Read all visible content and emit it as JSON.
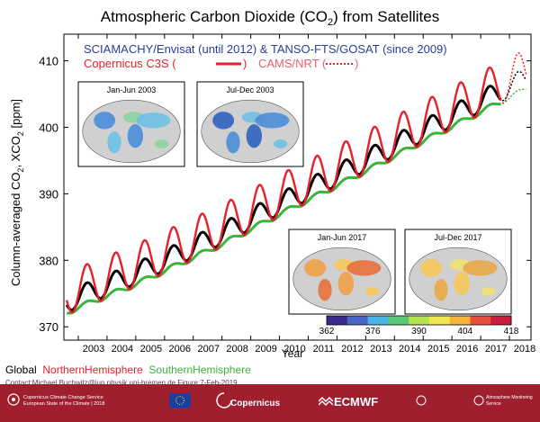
{
  "chart_data": {
    "type": "line",
    "title": "Atmospheric Carbon Dioxide (CO",
    "title_sub": "2",
    "title_end": ") from Satellites",
    "xlabel": "Year",
    "ylabel_parts": [
      "Column-averaged CO",
      "2",
      ", XCO",
      "2",
      " [ppm]"
    ],
    "ylim": [
      368,
      414
    ],
    "xlim": [
      2002.5,
      2018.75
    ],
    "yticks": [
      370,
      380,
      390,
      400,
      410
    ],
    "xticks": [
      "2003",
      "2004",
      "2005",
      "2006",
      "2007",
      "2008",
      "2009",
      "2010",
      "2011",
      "2012",
      "2013",
      "2014",
      "2015",
      "2016",
      "2017",
      "2018"
    ],
    "header_line1": "SCIAMACHY/Envisat (until 2012) & TANSO-FTS/GOSAT (since 2009)",
    "header_line2a": "Copernicus   C3S (",
    "header_line2b": ")",
    "header_line2c": "CAMS/NRT (",
    "header_line2d": ")",
    "series": [
      {
        "name": "Global",
        "color": "#000000",
        "offset": 0,
        "amplitude": 1.6
      },
      {
        "name": "NorthernHemisphere",
        "color": "#e8202a",
        "offset": 1.2,
        "amplitude": 3.2
      },
      {
        "name": "SouthernHemisphere",
        "color": "#3cb43c",
        "offset": -1.6,
        "amplitude": 0.4
      }
    ],
    "trend": {
      "x": [
        2003.0,
        2005.0,
        2008.0,
        2010.0,
        2013.0,
        2015.0,
        2017.5
      ],
      "y": [
        374.5,
        378.0,
        384.0,
        388.5,
        395.0,
        399.5,
        405.0
      ]
    },
    "nrt": {
      "x_start": 2017.75,
      "x_end": 2018.6
    },
    "insets": [
      {
        "label": "Jan-Jun 2003",
        "style": "early-a"
      },
      {
        "label": "Jul-Dec 2003",
        "style": "early-b"
      },
      {
        "label": "Jan-Jun 2017",
        "style": "late-a"
      },
      {
        "label": "Jul-Dec 2017",
        "style": "late-b"
      }
    ],
    "colorbar": {
      "ticks": [
        "362",
        "376",
        "390",
        "404",
        "418"
      ],
      "colors": [
        "#3c2a8c",
        "#4a64c8",
        "#4ab4e6",
        "#5ac878",
        "#b4e150",
        "#f0e650",
        "#f5b43c",
        "#e6503c",
        "#c81e3c"
      ]
    }
  },
  "legend": {
    "global": "Global",
    "nh": "NorthernHemisphere",
    "sh": "SouthernHemisphere"
  },
  "contact": "Contact:Michael.Buchwitz@iup.physik.uni-bremen.de Figure:7-Feb-2019",
  "footer": {
    "c3s_line1": "Copernicus Climate Change Service",
    "c3s_line2": "European State of the Climate | 2018",
    "copernicus": "Copernicus",
    "ecmwf": "ECMWF",
    "cams": "Atmosphere Monitoring Service"
  }
}
